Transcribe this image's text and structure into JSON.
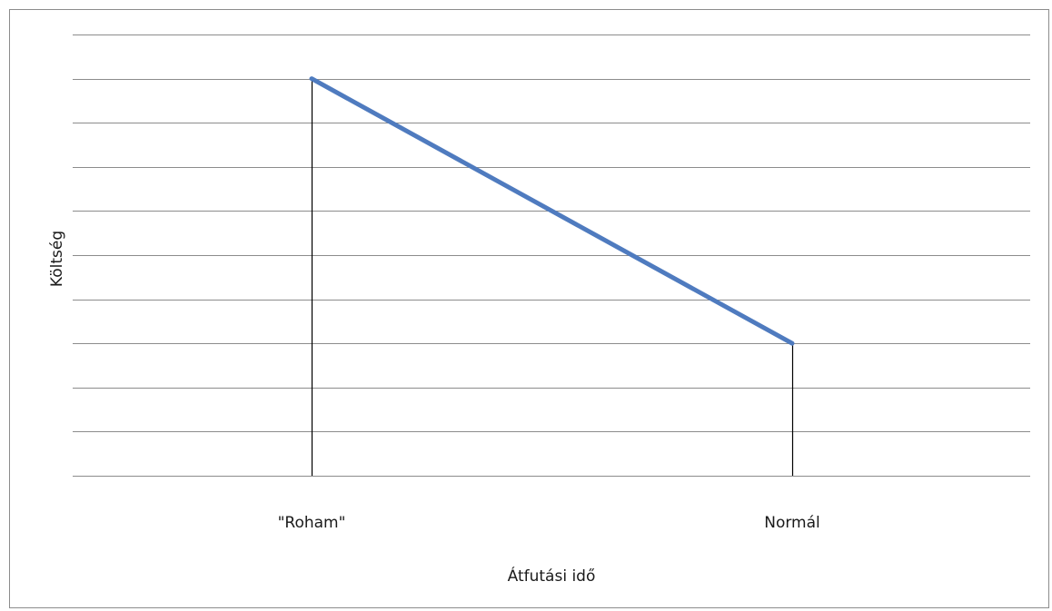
{
  "chart_data": {
    "type": "line",
    "title": "",
    "xlabel": "Átfutási idő",
    "ylabel": "Költség",
    "categories": [
      "\"Roham\"",
      "Normál"
    ],
    "series": [
      {
        "values": [
          9,
          3
        ]
      }
    ],
    "ylim": [
      0,
      10
    ],
    "grid": true,
    "gridlines": 10,
    "drop_lines": true,
    "legend": "none",
    "colors": {
      "series": "#4f7bbf",
      "grid": "#8c8c8c",
      "drop_line": "#000000",
      "frame": "#8c8c8c"
    }
  }
}
